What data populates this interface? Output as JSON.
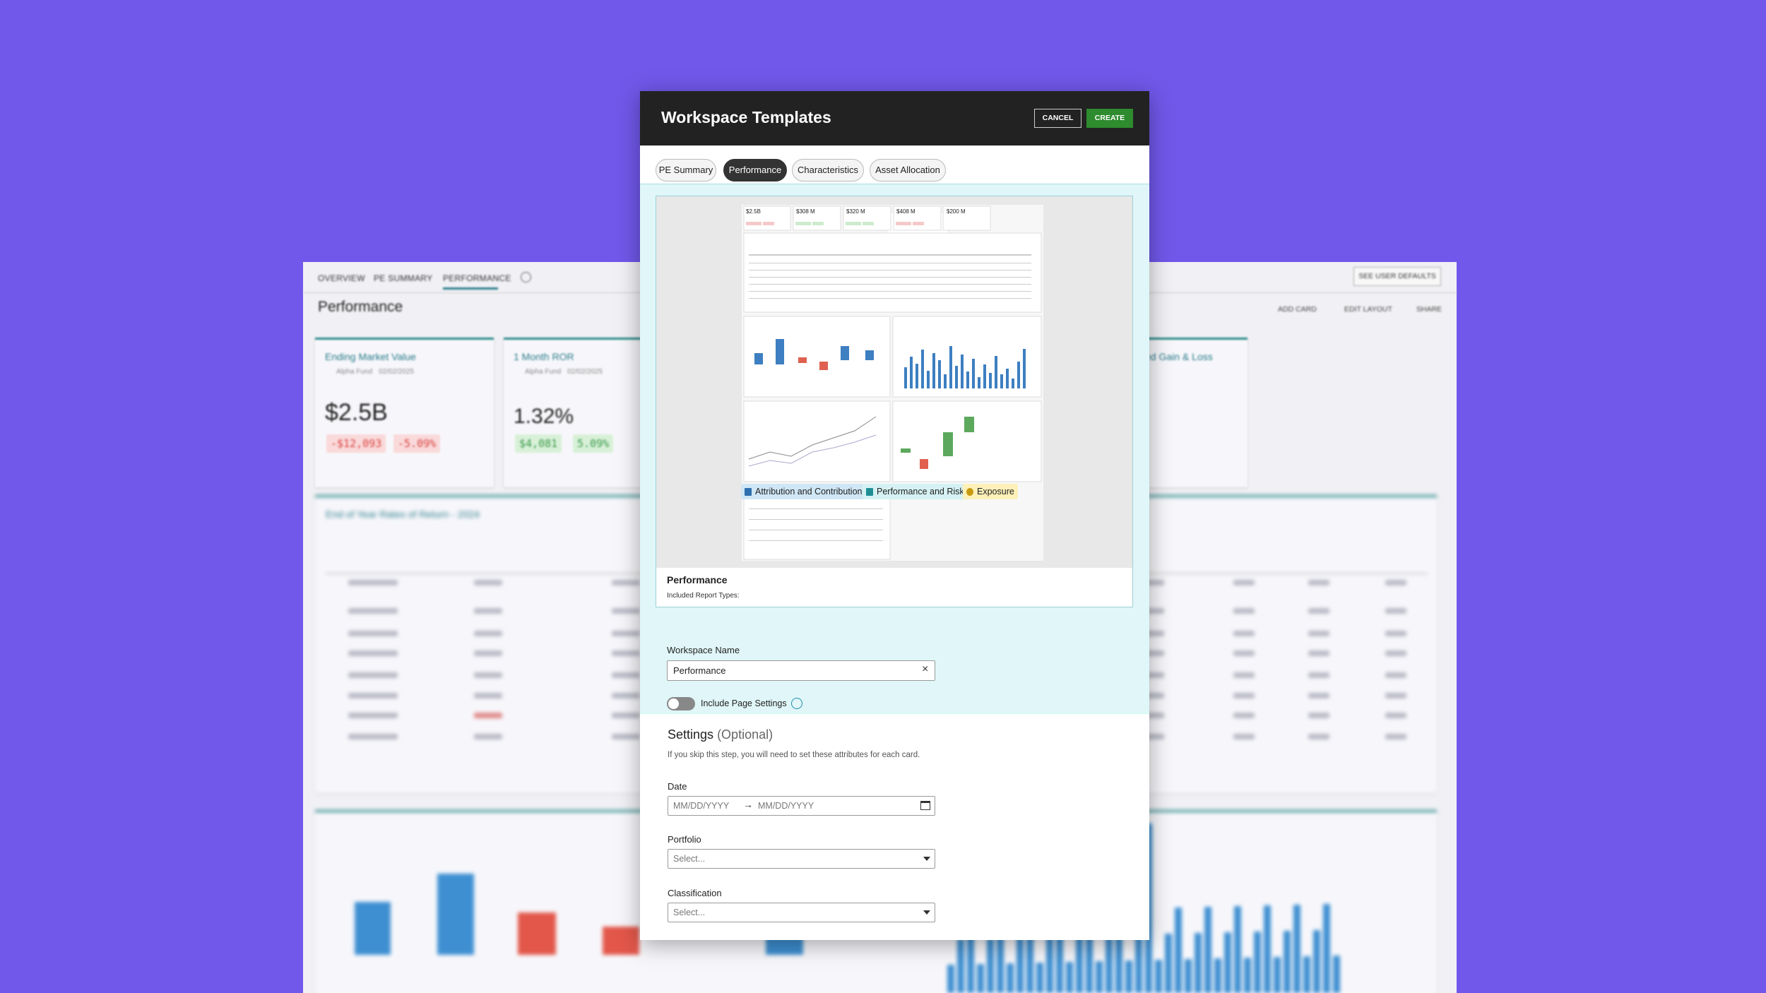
{
  "background": {
    "tabs": [
      "OVERVIEW",
      "PE SUMMARY",
      "PERFORMANCE"
    ],
    "see_user_defaults": "SEE USER DEFAULTS",
    "page_title": "Performance",
    "actions": [
      "ADD CARD",
      "EDIT LAYOUT",
      "SHARE"
    ],
    "cards": [
      {
        "title": "Ending Market Value",
        "fund": "Alpha Fund",
        "date": "02/02/2025",
        "value": "$2.5B",
        "changes": [
          "-$12,093",
          "-5.09%"
        ]
      },
      {
        "title": "1 Month ROR",
        "fund": "Alpha Fund",
        "date": "02/02/2025",
        "value": "1.32%",
        "changes": [
          "$4,081",
          "5.09%"
        ]
      },
      {
        "title": "ed Gain & Loss"
      }
    ],
    "table_title": "End of Year Rates of Return - 2024"
  },
  "modal": {
    "title": "Workspace Templates",
    "buttons": {
      "cancel": "CANCEL",
      "create": "CREATE"
    },
    "tabs": [
      "PE Summary",
      "Performance",
      "Characteristics",
      "Asset Allocation"
    ],
    "active_tab": 1,
    "preview": {
      "thumbnail_values": [
        "$2.5B",
        "$308 M",
        "$320 M",
        "$408 M",
        "$200 M"
      ],
      "name": "Performance",
      "included_label": "Included Report Types:",
      "report_types": [
        "Attribution and Contribution",
        "Performance and Risk",
        "Exposure"
      ]
    },
    "form": {
      "workspace_name_label": "Workspace Name",
      "workspace_name_value": "Performance",
      "include_page_settings": "Include Page Settings",
      "settings_title": "Settings",
      "settings_optional": "(Optional)",
      "settings_hint": "If you skip this step, you will need to set these attributes for each card.",
      "date_label": "Date",
      "date_placeholders": [
        "MM/DD/YYYY",
        "MM/DD/YYYY"
      ],
      "portfolio_label": "Portfolio",
      "portfolio_placeholder": "Select...",
      "classification_label": "Classification",
      "classification_placeholder": "Select..."
    }
  }
}
